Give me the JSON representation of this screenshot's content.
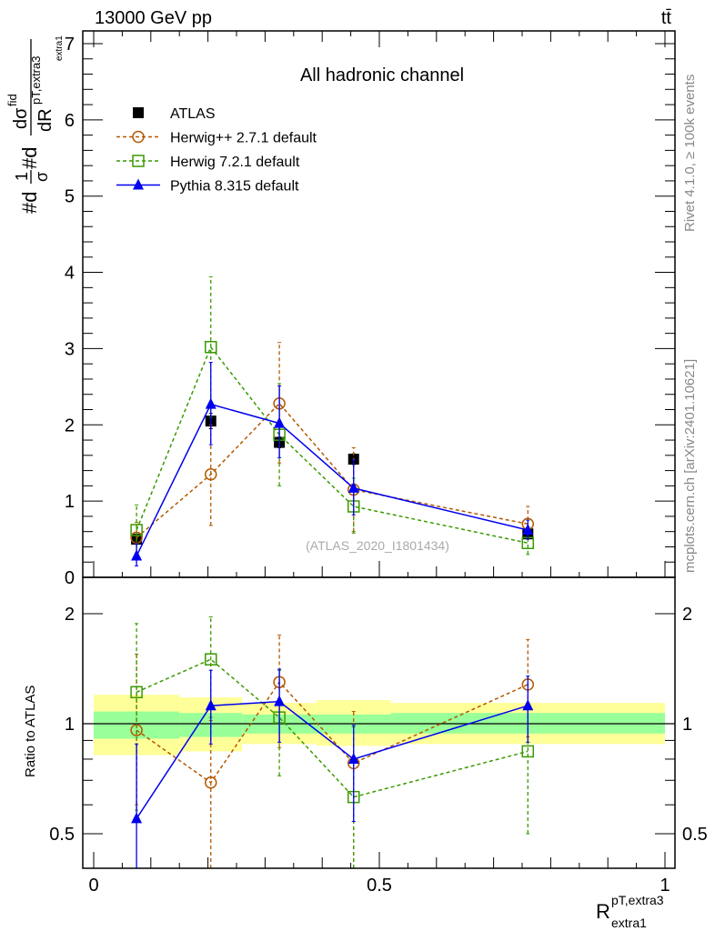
{
  "header": {
    "left": "13000 GeV pp",
    "right": "tt̄"
  },
  "side_labels": {
    "top": "Rivet 4.1.0, ≥ 100k events",
    "bottom": "mcplots.cern.ch [arXiv:2401.10621]"
  },
  "chart_data": [
    {
      "type": "line",
      "title": "All hadronic channel",
      "watermark": "(ATLAS_2020_I1801434)",
      "ylabel_parts": {
        "a": "#d",
        "frac1_num": "1",
        "frac1_den": "σ",
        "b": "#d",
        "frac2_num": "dσ",
        "frac2_num_sup": "fid",
        "frac2_den": "dR",
        "den_sup": "pT,extra3",
        "den_sub": "extra1"
      },
      "xlim": [
        0,
        1
      ],
      "ylim": [
        0,
        7
      ],
      "yticks": [
        "0",
        "1",
        "2",
        "3",
        "4",
        "5",
        "6",
        "7"
      ],
      "bins": [
        [
          0,
          0.15
        ],
        [
          0.15,
          0.26
        ],
        [
          0.26,
          0.39
        ],
        [
          0.39,
          0.52
        ],
        [
          0.52,
          1.0
        ]
      ],
      "x": [
        0.075,
        0.205,
        0.325,
        0.455,
        0.76
      ],
      "series": [
        {
          "name": "ATLAS",
          "color": "#000000",
          "marker": "square-filled",
          "dash": "none",
          "values": [
            0.5,
            2.05,
            1.77,
            1.55,
            0.57
          ],
          "err_lo": [
            0.45,
            1.95,
            1.7,
            1.48,
            0.53
          ],
          "err_hi": [
            0.55,
            2.15,
            1.84,
            1.62,
            0.61
          ]
        },
        {
          "name": "Herwig++ 2.7.1 default",
          "color": "#b35900",
          "marker": "circle-open",
          "dash": "4,3",
          "values": [
            0.52,
            1.35,
            2.28,
            1.15,
            0.7
          ],
          "err_lo": [
            0.32,
            0.68,
            1.5,
            0.6,
            0.5
          ],
          "err_hi": [
            0.72,
            2.0,
            3.08,
            1.7,
            0.93
          ]
        },
        {
          "name": "Herwig 7.2.1 default",
          "color": "#3a9a00",
          "marker": "square-open",
          "dash": "4,3",
          "values": [
            0.62,
            3.02,
            1.87,
            0.93,
            0.45
          ],
          "err_lo": [
            0.3,
            2.1,
            1.2,
            0.58,
            0.3
          ],
          "err_hi": [
            0.95,
            3.94,
            2.54,
            1.3,
            0.6
          ]
        },
        {
          "name": "Pythia 8.315 default",
          "color": "#0000ee",
          "marker": "triangle-filled",
          "dash": "none",
          "values": [
            0.28,
            2.27,
            2.02,
            1.17,
            0.62
          ],
          "err_lo": [
            0.15,
            1.74,
            1.57,
            0.82,
            0.5
          ],
          "err_hi": [
            0.44,
            2.82,
            2.51,
            1.54,
            0.75
          ]
        }
      ],
      "legend": "top-left"
    },
    {
      "type": "line",
      "ylabel": "Ratio to ATLAS",
      "xlabel_main": "R",
      "xlabel_sup": "pT,extra3",
      "xlabel_sub": "extra1",
      "xticks": [
        "0",
        "0.5",
        "1"
      ],
      "yticks": [
        "0.5",
        "1",
        "2"
      ],
      "yscale": "log",
      "ylim": [
        0.4,
        2.52
      ],
      "band_stat": [
        [
          0.91,
          1.08
        ],
        [
          0.92,
          1.07
        ],
        [
          0.94,
          1.06
        ],
        [
          0.94,
          1.06
        ],
        [
          0.94,
          1.07
        ]
      ],
      "band_total": [
        [
          0.82,
          1.2
        ],
        [
          0.84,
          1.18
        ],
        [
          0.88,
          1.14
        ],
        [
          0.87,
          1.16
        ],
        [
          0.88,
          1.14
        ]
      ],
      "series": [
        {
          "name": "Herwig++ 2.7.1 default",
          "values": [
            0.96,
            0.69,
            1.3,
            0.78,
            1.28
          ],
          "err_lo": [
            0.6,
            0.3,
            0.86,
            0.38,
            0.92
          ],
          "err_hi": [
            1.55,
            1.02,
            1.75,
            1.08,
            1.7
          ]
        },
        {
          "name": "Herwig 7.2.1 default",
          "values": [
            1.22,
            1.5,
            1.04,
            0.63,
            0.84
          ],
          "err_lo": [
            0.58,
            1.04,
            0.72,
            0.38,
            0.5
          ],
          "err_hi": [
            1.88,
            1.96,
            1.4,
            0.98,
            1.1
          ]
        },
        {
          "name": "Pythia 8.315 default",
          "values": [
            0.55,
            1.12,
            1.15,
            0.8,
            1.12
          ],
          "err_lo": [
            0.3,
            0.88,
            0.89,
            0.54,
            0.89
          ],
          "err_hi": [
            0.88,
            1.4,
            1.41,
            0.99,
            1.35
          ]
        }
      ]
    }
  ]
}
